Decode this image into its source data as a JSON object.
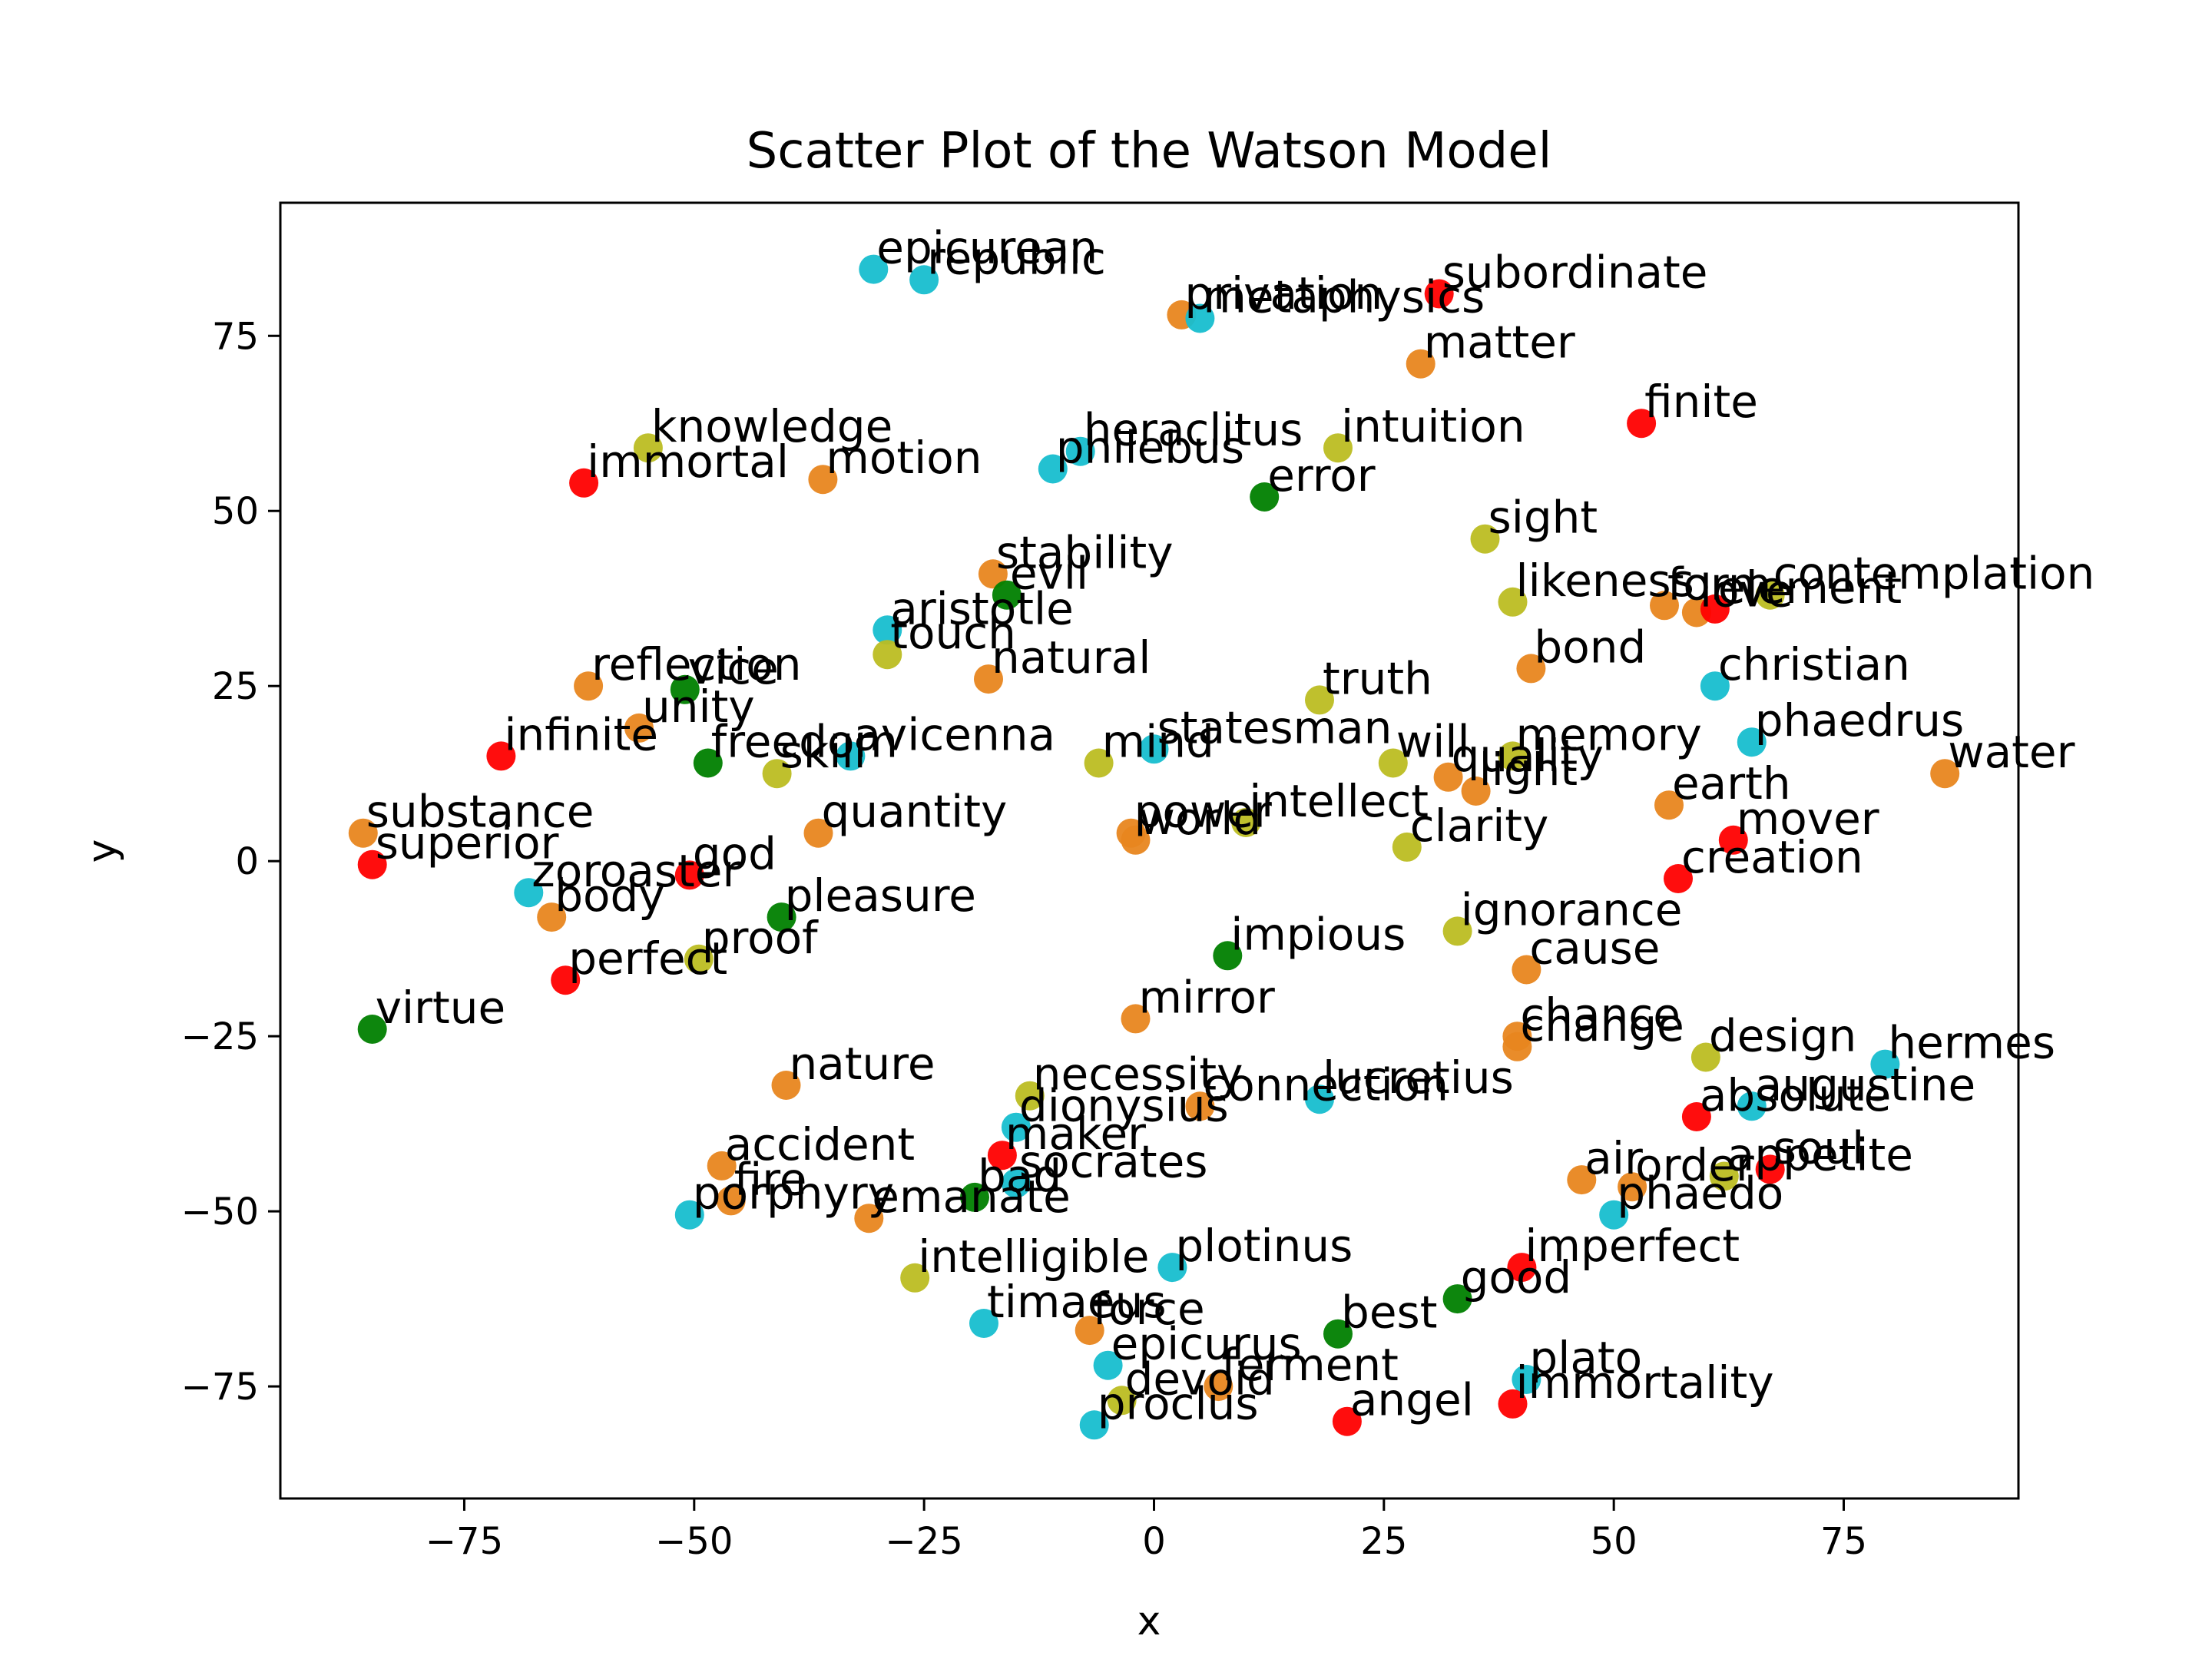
{
  "chart_data": {
    "type": "scatter",
    "title": "Scatter Plot of the Watson Model",
    "xlabel": "x",
    "ylabel": "y",
    "xlim": [
      -95,
      94
    ],
    "ylim": [
      -91,
      94
    ],
    "xticks": [
      -75,
      -50,
      -25,
      0,
      25,
      50,
      75
    ],
    "yticks": [
      -75,
      -50,
      -25,
      0,
      25,
      50,
      75
    ],
    "xtick_labels": [
      "−75",
      "−50",
      "−25",
      "0",
      "25",
      "50",
      "75"
    ],
    "ytick_labels": [
      "−75",
      "−50",
      "−25",
      "0",
      "25",
      "50",
      "75"
    ],
    "grid": false,
    "legend": false,
    "colors": {
      "red": "#ff0000",
      "orange": "#e8861f",
      "cyan": "#17becf",
      "olive": "#bcbd22",
      "green": "#008000"
    },
    "points": [
      {
        "label": "epicurean",
        "x": -30.5,
        "y": 84.5,
        "color": "cyan"
      },
      {
        "label": "republic",
        "x": -25,
        "y": 83,
        "color": "cyan"
      },
      {
        "label": "privation",
        "x": 3,
        "y": 78,
        "color": "orange"
      },
      {
        "label": "metaphysics",
        "x": 5,
        "y": 77.5,
        "color": "cyan"
      },
      {
        "label": "subordinate",
        "x": 31,
        "y": 81,
        "color": "red"
      },
      {
        "label": "matter",
        "x": 29,
        "y": 71,
        "color": "orange"
      },
      {
        "label": "finite",
        "x": 53,
        "y": 62.5,
        "color": "red"
      },
      {
        "label": "knowledge",
        "x": -55,
        "y": 59,
        "color": "olive"
      },
      {
        "label": "immortal",
        "x": -62,
        "y": 54,
        "color": "red"
      },
      {
        "label": "motion",
        "x": -36,
        "y": 54.5,
        "color": "orange"
      },
      {
        "label": "heraclitus",
        "x": -8,
        "y": 58.5,
        "color": "cyan"
      },
      {
        "label": "philebus",
        "x": -11,
        "y": 56,
        "color": "cyan"
      },
      {
        "label": "intuition",
        "x": 20,
        "y": 59,
        "color": "olive"
      },
      {
        "label": "error",
        "x": 12,
        "y": 52,
        "color": "green"
      },
      {
        "label": "sight",
        "x": 36,
        "y": 46,
        "color": "olive"
      },
      {
        "label": "stability",
        "x": -17.5,
        "y": 41,
        "color": "orange"
      },
      {
        "label": "evil",
        "x": -16,
        "y": 38,
        "color": "green"
      },
      {
        "label": "likeness",
        "x": 39,
        "y": 37,
        "color": "olive"
      },
      {
        "label": "form",
        "x": 55.5,
        "y": 36.5,
        "color": "orange"
      },
      {
        "label": "love",
        "x": 59,
        "y": 35.5,
        "color": "orange"
      },
      {
        "label": "element",
        "x": 61,
        "y": 36,
        "color": "red"
      },
      {
        "label": "contemplation",
        "x": 67,
        "y": 38,
        "color": "olive"
      },
      {
        "label": "aristotle",
        "x": -29,
        "y": 33,
        "color": "cyan"
      },
      {
        "label": "touch",
        "x": -29,
        "y": 29.5,
        "color": "olive"
      },
      {
        "label": "natural",
        "x": -18,
        "y": 26,
        "color": "orange"
      },
      {
        "label": "bond",
        "x": 41,
        "y": 27.5,
        "color": "orange"
      },
      {
        "label": "christian",
        "x": 61,
        "y": 25,
        "color": "cyan"
      },
      {
        "label": "reflection",
        "x": -61.5,
        "y": 25,
        "color": "orange"
      },
      {
        "label": "vice",
        "x": -51,
        "y": 24.5,
        "color": "green"
      },
      {
        "label": "truth",
        "x": 18,
        "y": 23,
        "color": "olive"
      },
      {
        "label": "unity",
        "x": -56,
        "y": 19,
        "color": "orange"
      },
      {
        "label": "phaedrus",
        "x": 65,
        "y": 17,
        "color": "cyan"
      },
      {
        "label": "infinite",
        "x": -71,
        "y": 15,
        "color": "red"
      },
      {
        "label": "freedom",
        "x": -48.5,
        "y": 14,
        "color": "green"
      },
      {
        "label": "skill",
        "x": -41,
        "y": 12.5,
        "color": "olive"
      },
      {
        "label": "avicenna",
        "x": -33,
        "y": 15,
        "color": "cyan"
      },
      {
        "label": "mind",
        "x": -6,
        "y": 14,
        "color": "olive"
      },
      {
        "label": "statesman",
        "x": 0,
        "y": 16,
        "color": "cyan"
      },
      {
        "label": "will",
        "x": 26,
        "y": 14,
        "color": "olive"
      },
      {
        "label": "quality",
        "x": 32,
        "y": 12,
        "color": "orange"
      },
      {
        "label": "light",
        "x": 35,
        "y": 10,
        "color": "orange"
      },
      {
        "label": "memory",
        "x": 39,
        "y": 15,
        "color": "olive"
      },
      {
        "label": "water",
        "x": 86,
        "y": 12.5,
        "color": "orange"
      },
      {
        "label": "earth",
        "x": 56,
        "y": 8,
        "color": "orange"
      },
      {
        "label": "intellect",
        "x": 10,
        "y": 5.5,
        "color": "olive"
      },
      {
        "label": "power",
        "x": -2.5,
        "y": 4,
        "color": "orange"
      },
      {
        "label": "world",
        "x": -2,
        "y": 3,
        "color": "orange"
      },
      {
        "label": "quantity",
        "x": -36.5,
        "y": 4,
        "color": "orange"
      },
      {
        "label": "clarity",
        "x": 27.5,
        "y": 2,
        "color": "olive"
      },
      {
        "label": "mover",
        "x": 63,
        "y": 3,
        "color": "red"
      },
      {
        "label": "creation",
        "x": 57,
        "y": -2.5,
        "color": "red"
      },
      {
        "label": "substance",
        "x": -86,
        "y": 4,
        "color": "orange"
      },
      {
        "label": "superior",
        "x": -85,
        "y": -0.5,
        "color": "red"
      },
      {
        "label": "god",
        "x": -50.5,
        "y": -2,
        "color": "red"
      },
      {
        "label": "zoroaster",
        "x": -68,
        "y": -4.5,
        "color": "cyan"
      },
      {
        "label": "body",
        "x": -65.5,
        "y": -8,
        "color": "orange"
      },
      {
        "label": "pleasure",
        "x": -40.5,
        "y": -8,
        "color": "green"
      },
      {
        "label": "ignorance",
        "x": 33,
        "y": -10,
        "color": "olive"
      },
      {
        "label": "impious",
        "x": 8,
        "y": -13.5,
        "color": "green"
      },
      {
        "label": "proof",
        "x": -49.5,
        "y": -14,
        "color": "olive"
      },
      {
        "label": "cause",
        "x": 40.5,
        "y": -15.5,
        "color": "orange"
      },
      {
        "label": "perfect",
        "x": -64,
        "y": -17,
        "color": "red"
      },
      {
        "label": "virtue",
        "x": -85,
        "y": -24,
        "color": "green"
      },
      {
        "label": "mirror",
        "x": -2,
        "y": -22.5,
        "color": "orange"
      },
      {
        "label": "chance",
        "x": 39.5,
        "y": -25,
        "color": "orange"
      },
      {
        "label": "change",
        "x": 39.5,
        "y": -26.5,
        "color": "orange"
      },
      {
        "label": "design",
        "x": 60,
        "y": -28,
        "color": "olive"
      },
      {
        "label": "hermes",
        "x": 79.5,
        "y": -29,
        "color": "cyan"
      },
      {
        "label": "nature",
        "x": -40,
        "y": -32,
        "color": "orange"
      },
      {
        "label": "necessity",
        "x": -13.5,
        "y": -33.5,
        "color": "olive"
      },
      {
        "label": "connection",
        "x": 5,
        "y": -35,
        "color": "orange"
      },
      {
        "label": "lucretius",
        "x": 18,
        "y": -34,
        "color": "cyan"
      },
      {
        "label": "augustine",
        "x": 65,
        "y": -35,
        "color": "cyan"
      },
      {
        "label": "absolute",
        "x": 59,
        "y": -36.5,
        "color": "red"
      },
      {
        "label": "dionysius",
        "x": -15,
        "y": -38,
        "color": "cyan"
      },
      {
        "label": "maker",
        "x": -16.5,
        "y": -42,
        "color": "red"
      },
      {
        "label": "accident",
        "x": -47,
        "y": -43.5,
        "color": "orange"
      },
      {
        "label": "socrates",
        "x": -15,
        "y": -46,
        "color": "cyan"
      },
      {
        "label": "bad",
        "x": -19.5,
        "y": -48,
        "color": "green"
      },
      {
        "label": "air",
        "x": 46.5,
        "y": -45.5,
        "color": "orange"
      },
      {
        "label": "order",
        "x": 52,
        "y": -46.5,
        "color": "orange"
      },
      {
        "label": "appetite",
        "x": 62,
        "y": -45,
        "color": "olive"
      },
      {
        "label": "soul",
        "x": 67,
        "y": -44,
        "color": "red"
      },
      {
        "label": "fire",
        "x": -46,
        "y": -48.5,
        "color": "orange"
      },
      {
        "label": "emanate",
        "x": -31,
        "y": -51,
        "color": "orange"
      },
      {
        "label": "porphyry",
        "x": -50.5,
        "y": -50.5,
        "color": "cyan"
      },
      {
        "label": "phaedo",
        "x": 50,
        "y": -50.5,
        "color": "cyan"
      },
      {
        "label": "imperfect",
        "x": 40,
        "y": -58,
        "color": "red"
      },
      {
        "label": "plotinus",
        "x": 2,
        "y": -58,
        "color": "cyan"
      },
      {
        "label": "intelligible",
        "x": -26,
        "y": -59.5,
        "color": "olive"
      },
      {
        "label": "good",
        "x": 33,
        "y": -62.5,
        "color": "green"
      },
      {
        "label": "timaeus",
        "x": -18.5,
        "y": -66,
        "color": "cyan"
      },
      {
        "label": "force",
        "x": -7,
        "y": -67,
        "color": "orange"
      },
      {
        "label": "best",
        "x": 20,
        "y": -67.5,
        "color": "green"
      },
      {
        "label": "epicurus",
        "x": -5,
        "y": -72,
        "color": "cyan"
      },
      {
        "label": "ferment",
        "x": 7,
        "y": -75,
        "color": "orange"
      },
      {
        "label": "plato",
        "x": 40.5,
        "y": -74,
        "color": "cyan"
      },
      {
        "label": "devoid",
        "x": -3.5,
        "y": -77,
        "color": "olive"
      },
      {
        "label": "immortality",
        "x": 39,
        "y": -77.5,
        "color": "red"
      },
      {
        "label": "proclus",
        "x": -6.5,
        "y": -80.5,
        "color": "cyan"
      },
      {
        "label": "angel",
        "x": 21,
        "y": -80,
        "color": "red"
      }
    ]
  }
}
